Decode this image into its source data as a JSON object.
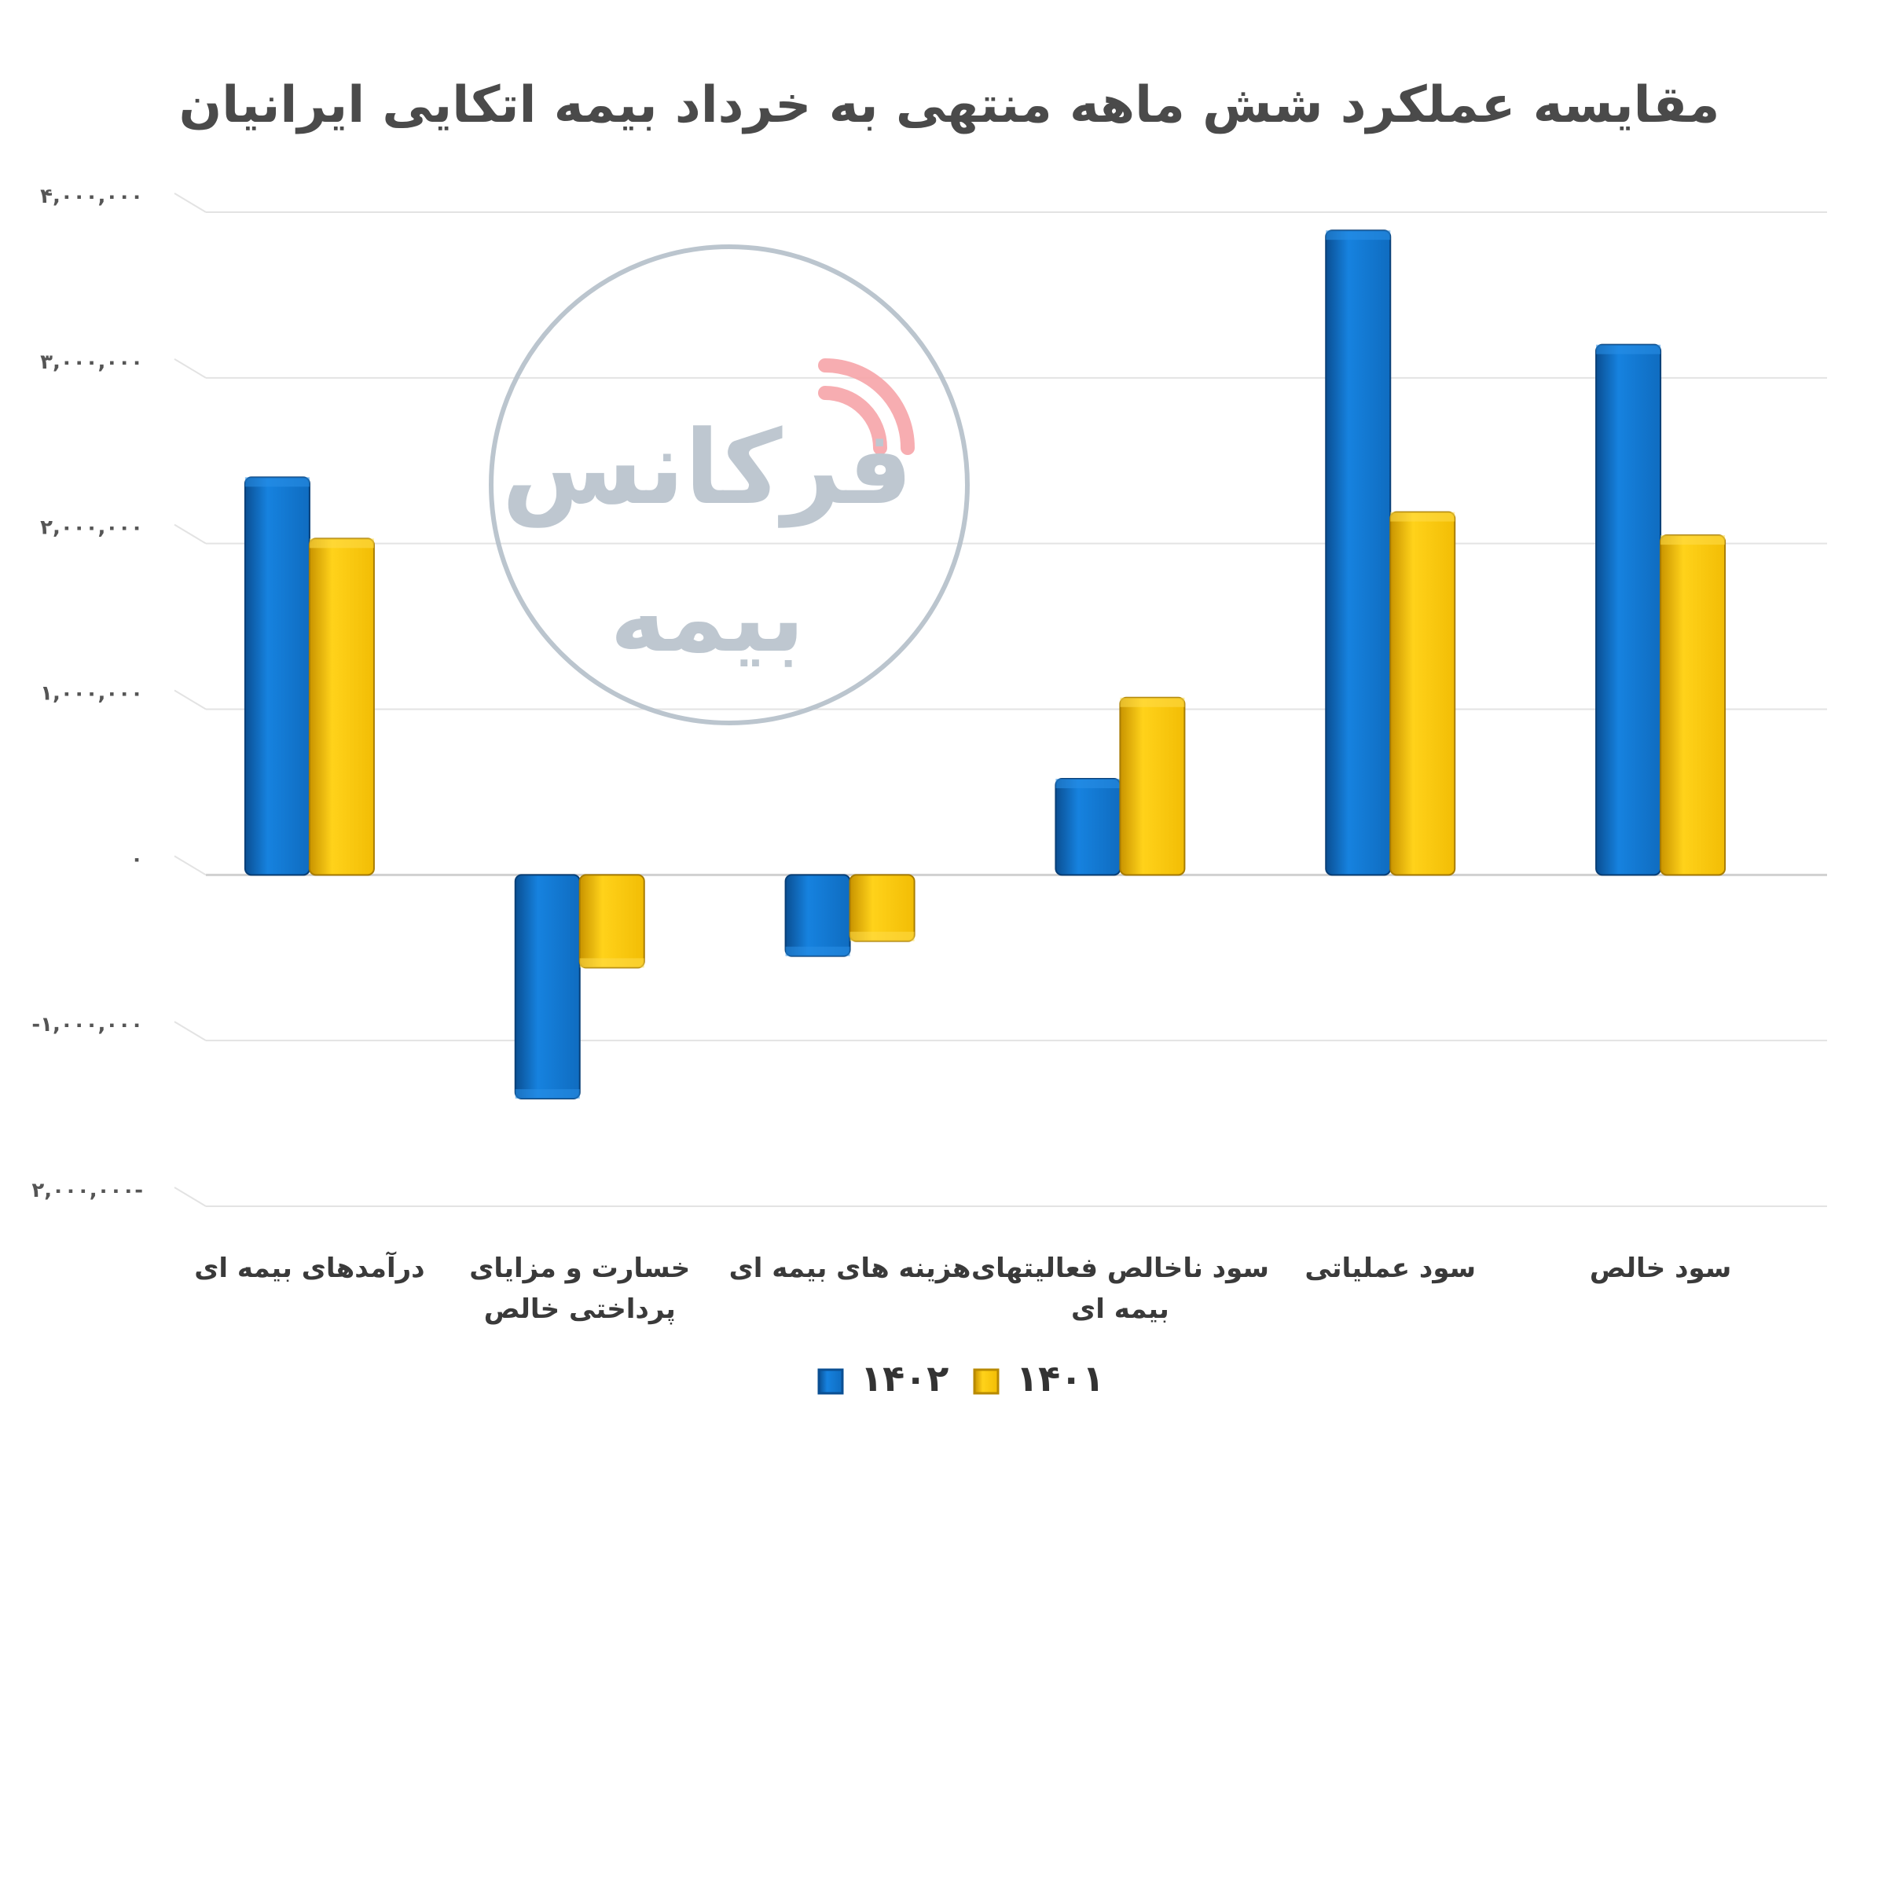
{
  "title": "مقایسه عملکرد شش ماهه منتهی به خرداد بیمه اتکایی ایرانیان",
  "watermark": {
    "line1": "فرکانس",
    "line2": "بیمه"
  },
  "colors": {
    "series_1402": "#1479d2",
    "series_1401": "#fbc80c",
    "title": "#4a4a4a",
    "grid": "#e3e3e3",
    "watermark_ring": "#b4bfc9",
    "watermark_accent": "#f7a5a9"
  },
  "chart_data": {
    "type": "bar",
    "ylim": [
      -2000000,
      4000000
    ],
    "y_ticks": [
      {
        "value": 4000000,
        "label": "۴,۰۰۰,۰۰۰"
      },
      {
        "value": 3000000,
        "label": "۳,۰۰۰,۰۰۰"
      },
      {
        "value": 2000000,
        "label": "۲,۰۰۰,۰۰۰"
      },
      {
        "value": 1000000,
        "label": "۱,۰۰۰,۰۰۰"
      },
      {
        "value": 0,
        "label": "۰"
      },
      {
        "value": -1000000,
        "label": "-۱,۰۰۰,۰۰۰"
      },
      {
        "value": -2000000,
        "label": "۲,۰۰۰,۰۰۰-"
      }
    ],
    "categories": [
      [
        "درآمدهای بیمه ای"
      ],
      [
        "خسارت و مزایای",
        "پرداختی خالص"
      ],
      [
        "هزینه های بیمه ای"
      ],
      [
        "سود ناخالص فعالیتهای",
        "بیمه ای"
      ],
      [
        "سود عملیاتی"
      ],
      [
        "سود خالص"
      ]
    ],
    "series": [
      {
        "name": "۱۴۰۲",
        "color": "#1479d2",
        "values": [
          2400000,
          -1350000,
          -490000,
          580000,
          3890000,
          3200000
        ]
      },
      {
        "name": "۱۴۰۱",
        "color": "#fbc80c",
        "values": [
          2030000,
          -560000,
          -400000,
          1070000,
          2190000,
          2050000
        ]
      }
    ],
    "grid": true,
    "legend_position": "bottom"
  }
}
